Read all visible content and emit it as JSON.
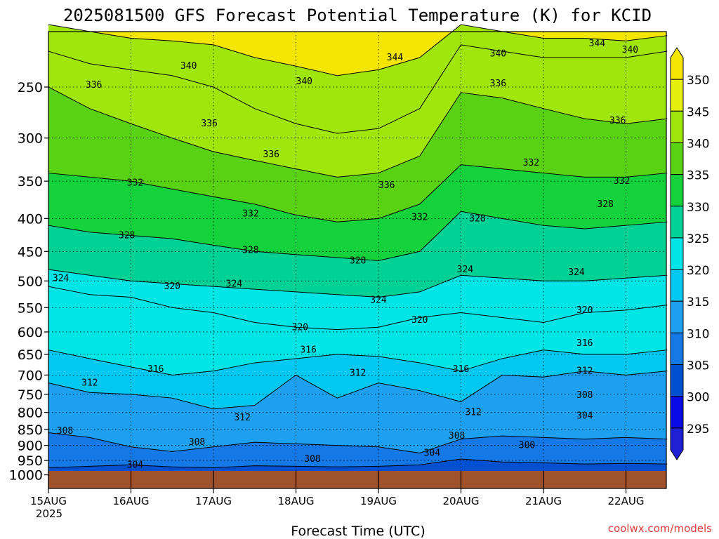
{
  "chart_data": {
    "type": "heatmap",
    "title": "2025081500 GFS Forecast Potential Temperature (K) for KCID",
    "xlabel": "Forecast Time (UTC)",
    "ylabel": "",
    "x_ticks": [
      "15AUG",
      "16AUG",
      "17AUG",
      "18AUG",
      "19AUG",
      "20AUG",
      "21AUG",
      "22AUG"
    ],
    "x_sublabel": "2025",
    "y_ticks": [
      250,
      300,
      350,
      400,
      450,
      500,
      550,
      600,
      650,
      700,
      750,
      800,
      850,
      900,
      950,
      1000
    ],
    "y_scale": "log",
    "y_reversed": true,
    "grid": "dotted",
    "colorbar": {
      "levels": [
        295,
        300,
        305,
        310,
        315,
        320,
        325,
        330,
        335,
        340,
        345,
        350
      ],
      "colors": [
        "#1e1ed2",
        "#0a0ae6",
        "#0050d2",
        "#1478e6",
        "#1ea0f0",
        "#00c8f0",
        "#00e6e6",
        "#00d296",
        "#14d23c",
        "#5ad214",
        "#a0e60a",
        "#e6f00a",
        "#f5e600"
      ]
    },
    "series": [
      {
        "name": "304",
        "x": [
          0,
          0.5,
          1,
          1.5,
          2,
          2.5,
          3,
          3.5,
          4,
          4.5,
          5,
          5.5,
          6,
          6.5,
          7,
          7.5
        ],
        "y": [
          975,
          970,
          965,
          972,
          975,
          968,
          970,
          972,
          970,
          965,
          945,
          955,
          958,
          962,
          960,
          962
        ]
      },
      {
        "name": "308",
        "x": [
          0,
          0.5,
          1,
          1.5,
          2,
          2.5,
          3,
          3.5,
          4,
          4.5,
          5,
          5.5,
          6,
          6.5,
          7,
          7.5
        ],
        "y": [
          860,
          875,
          905,
          920,
          905,
          890,
          895,
          900,
          905,
          925,
          880,
          870,
          875,
          880,
          875,
          880
        ]
      },
      {
        "name": "312",
        "x": [
          0,
          0.5,
          1,
          1.5,
          2,
          2.5,
          3,
          3.5,
          4,
          4.5,
          5,
          5.5,
          6,
          6.5,
          7,
          7.5
        ],
        "y": [
          720,
          745,
          750,
          760,
          790,
          780,
          700,
          760,
          720,
          740,
          770,
          700,
          705,
          690,
          700,
          690
        ]
      },
      {
        "name": "316",
        "x": [
          0,
          0.5,
          1,
          1.5,
          2,
          2.5,
          3,
          3.5,
          4,
          4.5,
          5,
          5.5,
          6,
          6.5,
          7,
          7.5
        ],
        "y": [
          640,
          660,
          680,
          700,
          690,
          670,
          660,
          650,
          655,
          670,
          690,
          660,
          640,
          650,
          650,
          640
        ]
      },
      {
        "name": "320",
        "x": [
          0,
          0.5,
          1,
          1.5,
          2,
          2.5,
          3,
          3.5,
          4,
          4.5,
          5,
          5.5,
          6,
          6.5,
          7,
          7.5
        ],
        "y": [
          510,
          525,
          530,
          550,
          560,
          580,
          590,
          595,
          590,
          570,
          560,
          570,
          580,
          560,
          555,
          545
        ]
      },
      {
        "name": "324",
        "x": [
          0,
          0.5,
          1,
          1.5,
          2,
          2.5,
          3,
          3.5,
          4,
          4.5,
          5,
          5.5,
          6,
          6.5,
          7,
          7.5
        ],
        "y": [
          480,
          490,
          500,
          505,
          510,
          515,
          520,
          525,
          530,
          520,
          490,
          495,
          500,
          500,
          495,
          490
        ]
      },
      {
        "name": "328",
        "x": [
          0,
          0.5,
          1,
          1.5,
          2,
          2.5,
          3,
          3.5,
          4,
          4.5,
          5,
          5.5,
          6,
          6.5,
          7,
          7.5
        ],
        "y": [
          410,
          420,
          425,
          430,
          440,
          450,
          455,
          460,
          465,
          450,
          390,
          400,
          410,
          415,
          410,
          405
        ]
      },
      {
        "name": "332",
        "x": [
          0,
          0.5,
          1,
          1.5,
          2,
          2.5,
          3,
          3.5,
          4,
          4.5,
          5,
          5.5,
          6,
          6.5,
          7,
          7.5
        ],
        "y": [
          340,
          345,
          350,
          360,
          370,
          380,
          395,
          405,
          400,
          380,
          330,
          335,
          340,
          345,
          345,
          340
        ]
      },
      {
        "name": "336",
        "x": [
          0,
          0.5,
          1,
          1.5,
          2,
          2.5,
          3,
          3.5,
          4,
          4.5,
          5,
          5.5,
          6,
          6.5,
          7,
          7.5
        ],
        "y": [
          250,
          270,
          285,
          300,
          315,
          325,
          335,
          345,
          340,
          320,
          255,
          260,
          270,
          280,
          285,
          280
        ]
      },
      {
        "name": "340",
        "x": [
          0,
          0.5,
          1,
          1.5,
          2,
          2.5,
          3,
          3.5,
          4,
          4.5,
          5,
          5.5,
          6,
          6.5,
          7,
          7.5
        ],
        "y": [
          220,
          230,
          235,
          240,
          250,
          270,
          285,
          295,
          290,
          270,
          215,
          220,
          225,
          225,
          225,
          220
        ]
      },
      {
        "name": "344",
        "x": [
          0,
          0.5,
          1,
          1.5,
          2,
          2.5,
          3,
          3.5,
          4,
          4.5,
          5,
          5.5,
          6,
          6.5,
          7,
          7.5
        ],
        "y": [
          200,
          205,
          210,
          212,
          215,
          225,
          232,
          240,
          235,
          225,
          200,
          205,
          210,
          210,
          212,
          208
        ]
      }
    ],
    "contour_labels": [
      {
        "text": "340",
        "x": 1.7,
        "y": 232
      },
      {
        "text": "344",
        "x": 4.2,
        "y": 225
      },
      {
        "text": "340",
        "x": 3.1,
        "y": 245
      },
      {
        "text": "336",
        "x": 0.55,
        "y": 248
      },
      {
        "text": "336",
        "x": 1.95,
        "y": 285
      },
      {
        "text": "336",
        "x": 2.7,
        "y": 318
      },
      {
        "text": "336",
        "x": 4.1,
        "y": 355
      },
      {
        "text": "340",
        "x": 5.45,
        "y": 222
      },
      {
        "text": "344",
        "x": 6.65,
        "y": 214
      },
      {
        "text": "340",
        "x": 7.05,
        "y": 219
      },
      {
        "text": "336",
        "x": 5.45,
        "y": 247
      },
      {
        "text": "336",
        "x": 6.9,
        "y": 282
      },
      {
        "text": "332",
        "x": 1.05,
        "y": 352
      },
      {
        "text": "332",
        "x": 2.45,
        "y": 393
      },
      {
        "text": "332",
        "x": 4.5,
        "y": 398
      },
      {
        "text": "328",
        "x": 5.2,
        "y": 400
      },
      {
        "text": "332",
        "x": 5.85,
        "y": 328
      },
      {
        "text": "332",
        "x": 6.95,
        "y": 350
      },
      {
        "text": "328",
        "x": 6.75,
        "y": 380
      },
      {
        "text": "328",
        "x": 0.95,
        "y": 425
      },
      {
        "text": "328",
        "x": 2.45,
        "y": 448
      },
      {
        "text": "328",
        "x": 3.75,
        "y": 465
      },
      {
        "text": "324",
        "x": 5.05,
        "y": 480
      },
      {
        "text": "324",
        "x": 6.4,
        "y": 485
      },
      {
        "text": "324",
        "x": 0.15,
        "y": 495
      },
      {
        "text": "320",
        "x": 1.5,
        "y": 510
      },
      {
        "text": "324",
        "x": 2.25,
        "y": 505
      },
      {
        "text": "324",
        "x": 4.0,
        "y": 535
      },
      {
        "text": "320",
        "x": 3.05,
        "y": 590
      },
      {
        "text": "320",
        "x": 4.5,
        "y": 575
      },
      {
        "text": "320",
        "x": 6.5,
        "y": 555
      },
      {
        "text": "316",
        "x": 6.5,
        "y": 625
      },
      {
        "text": "316",
        "x": 3.15,
        "y": 640
      },
      {
        "text": "316",
        "x": 5.0,
        "y": 685
      },
      {
        "text": "316",
        "x": 1.3,
        "y": 685
      },
      {
        "text": "312",
        "x": 0.5,
        "y": 720
      },
      {
        "text": "312",
        "x": 3.75,
        "y": 695
      },
      {
        "text": "312",
        "x": 6.5,
        "y": 690
      },
      {
        "text": "308",
        "x": 6.5,
        "y": 752
      },
      {
        "text": "304",
        "x": 6.5,
        "y": 810
      },
      {
        "text": "312",
        "x": 2.35,
        "y": 815
      },
      {
        "text": "312",
        "x": 5.15,
        "y": 800
      },
      {
        "text": "308",
        "x": 0.2,
        "y": 855
      },
      {
        "text": "308",
        "x": 1.8,
        "y": 890
      },
      {
        "text": "308",
        "x": 4.95,
        "y": 870
      },
      {
        "text": "300",
        "x": 5.8,
        "y": 900
      },
      {
        "text": "304",
        "x": 4.65,
        "y": 925
      },
      {
        "text": "308",
        "x": 3.2,
        "y": 945
      },
      {
        "text": "304",
        "x": 1.05,
        "y": 965
      }
    ]
  },
  "credit": "coolwx.com/models"
}
